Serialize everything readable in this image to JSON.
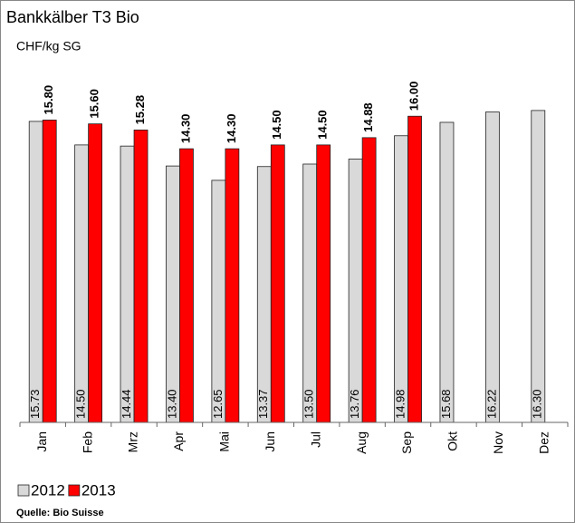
{
  "chart_data": {
    "type": "bar",
    "title": "Bankkälber T3 Bio",
    "subtitle": "CHF/kg SG",
    "source": "Quelle: Bio Suisse",
    "categories": [
      "Jan",
      "Feb",
      "Mrz",
      "Apr",
      "Mai",
      "Jun",
      "Jul",
      "Aug",
      "Sep",
      "Okt",
      "Nov",
      "Dez"
    ],
    "series": [
      {
        "name": "2012",
        "color": "#d9d9d9",
        "values": [
          15.73,
          14.5,
          14.44,
          13.4,
          12.65,
          13.37,
          13.5,
          13.76,
          14.98,
          15.68,
          16.22,
          16.3
        ],
        "value_labels": [
          "15.73",
          "14.50",
          "14.44",
          "13.40",
          "12.65",
          "13.37",
          "13.50",
          "13.76",
          "14.98",
          "15.68",
          "16.22",
          "16.30"
        ]
      },
      {
        "name": "2013",
        "color": "#ff0000",
        "values": [
          15.8,
          15.6,
          15.28,
          14.3,
          14.3,
          14.5,
          14.5,
          14.88,
          16.0,
          null,
          null,
          null
        ],
        "value_labels": [
          "15.80",
          "15.60",
          "15.28",
          "14.30",
          "14.30",
          "14.50",
          "14.50",
          "14.88",
          "16.00",
          null,
          null,
          null
        ]
      }
    ],
    "ylim": [
      0,
      18
    ]
  }
}
